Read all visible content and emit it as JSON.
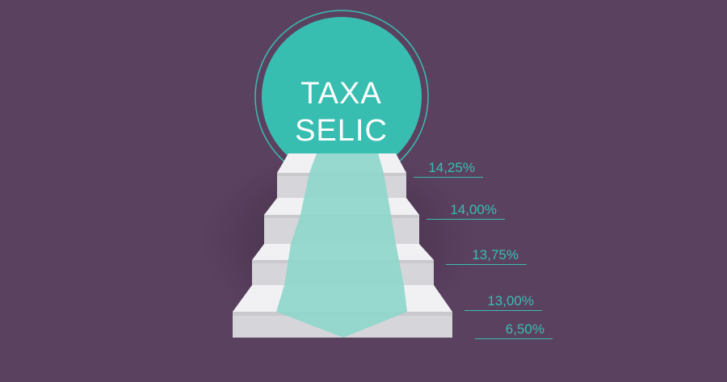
{
  "title": {
    "line1": "TAXA",
    "line2": "SELIC"
  },
  "rates": [
    "14,25%",
    "14,00%",
    "13,75%",
    "13,00%",
    "6,50%"
  ],
  "colors": {
    "background": "#5b4160",
    "circle": "#38beb1",
    "carpet": "#8fd6cc",
    "stairs": "#e9e9eb",
    "label": "#38beb1"
  }
}
